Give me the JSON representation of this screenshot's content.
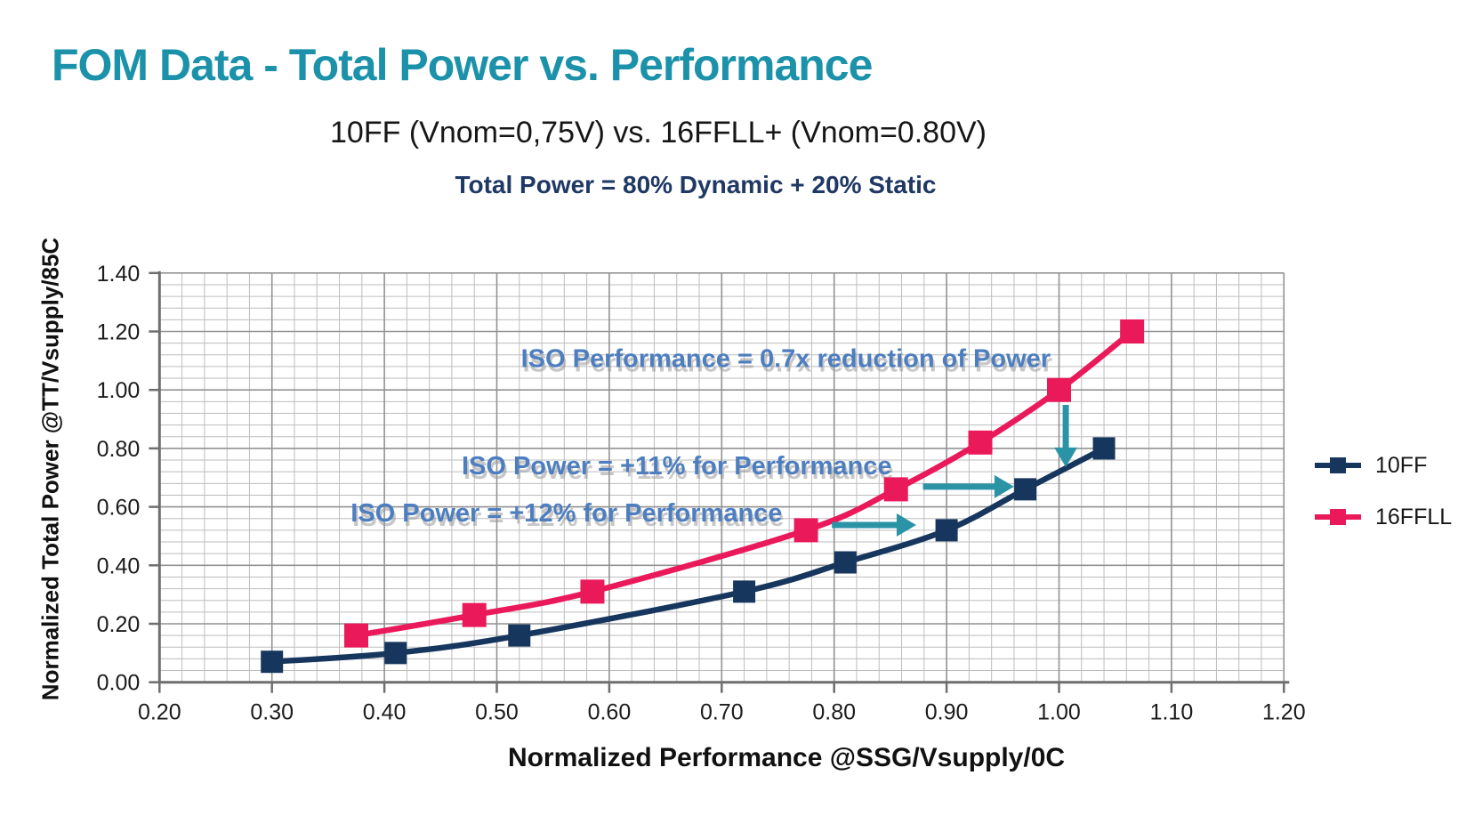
{
  "title": {
    "text": "FOM Data - Total Power vs. Performance"
  },
  "subtitle": {
    "text": "10FF (Vnom=0,75V) vs. 16FFLL+ (Vnom=0.80V)"
  },
  "formula": {
    "text": "Total Power = 80% Dynamic + 20% Static"
  },
  "colors": {
    "title": "#1b92aa",
    "formula": "#1f3864",
    "annotation": "#4d7ebf",
    "arrow": "#2b93a6",
    "grid_minor": "#bdbdbd",
    "grid_major": "#929292",
    "axis": "#6f6f6f",
    "tick_label": "#1c1c1c"
  },
  "chart_data": {
    "type": "line",
    "xlabel": "Normalized Performance @SSG/Vsupply/0C",
    "ylabel": "Normalized Total Power @TT/Vsupply/85C",
    "xlim": [
      0.2,
      1.2
    ],
    "ylim": [
      0.0,
      1.4
    ],
    "x_minor_step": 0.02,
    "y_minor_step": 0.04,
    "grid": true,
    "legend_position": "right",
    "x_ticks": {
      "values": [
        0.2,
        0.3,
        0.4,
        0.5,
        0.6,
        0.7,
        0.8,
        0.9,
        1.0,
        1.1,
        1.2
      ],
      "labels": [
        "0.20",
        "0.30",
        "0.40",
        "0.50",
        "0.60",
        "0.70",
        "0.80",
        "0.90",
        "1.00",
        "1.10",
        "1.20"
      ]
    },
    "y_ticks": {
      "values": [
        0.0,
        0.2,
        0.4,
        0.6,
        0.8,
        1.0,
        1.2,
        1.4
      ],
      "labels": [
        "0.00",
        "0.20",
        "0.40",
        "0.60",
        "0.80",
        "1.00",
        "1.20",
        "1.40"
      ]
    },
    "series": [
      {
        "name": "10FF",
        "color": "#17365d",
        "x": [
          0.3,
          0.41,
          0.52,
          0.72,
          0.81,
          0.9,
          0.97,
          1.04
        ],
        "y": [
          0.07,
          0.1,
          0.16,
          0.31,
          0.41,
          0.52,
          0.66,
          0.8
        ]
      },
      {
        "name": "16FFLL",
        "color": "#e9195a",
        "x": [
          0.375,
          0.48,
          0.585,
          0.775,
          0.855,
          0.93,
          1.0,
          1.065
        ],
        "y": [
          0.16,
          0.23,
          0.31,
          0.52,
          0.66,
          0.82,
          1.0,
          1.2
        ]
      }
    ],
    "annotations": [
      {
        "name": "iso-performance",
        "text": "ISO Performance = 0.7x reduction of Power",
        "x": 0.757,
        "y": 1.105
      },
      {
        "name": "iso-power-11",
        "text": "ISO Power = +11% for Performance",
        "x": 0.66,
        "y": 0.739
      },
      {
        "name": "iso-power-12",
        "text": "ISO Power = +12% for Performance",
        "x": 0.562,
        "y": 0.577
      }
    ],
    "arrows": [
      {
        "name": "iso-power-12-arrow",
        "x1": 0.798,
        "y1": 0.538,
        "x2": 0.873,
        "y2": 0.538
      },
      {
        "name": "iso-power-11-arrow",
        "x1": 0.879,
        "y1": 0.669,
        "x2": 0.96,
        "y2": 0.669
      },
      {
        "name": "iso-performance-arrow",
        "x1": 1.006,
        "y1": 0.949,
        "x2": 1.006,
        "y2": 0.736
      }
    ]
  }
}
